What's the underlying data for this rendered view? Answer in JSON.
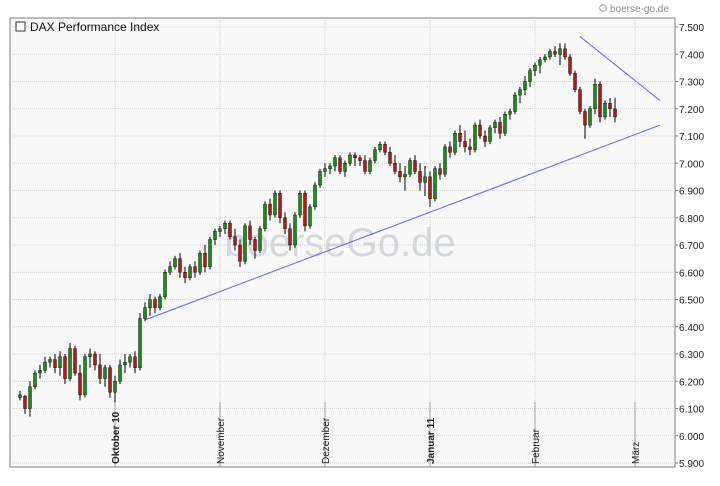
{
  "source_label": "boerse-go.de",
  "watermark": "boerseGo.de",
  "colors": {
    "up": "#1a8a1a",
    "down": "#b11a1a",
    "wick": "#000000",
    "trend": "#6f6ff0",
    "grid": "#c9c9c9"
  },
  "chart_data": {
    "type": "candlestick",
    "title": "DAX Performance Index",
    "ylim": [
      5900,
      7550
    ],
    "yticks": [
      "7.500",
      "7.400",
      "7.300",
      "7.200",
      "7.100",
      "7.000",
      "6.900",
      "6.800",
      "6.700",
      "6.600",
      "6.500",
      "6.400",
      "6.300",
      "6.200",
      "6.100",
      "6.000",
      "5.900"
    ],
    "ytick_values": [
      7500,
      7400,
      7300,
      7200,
      7100,
      7000,
      6900,
      6800,
      6700,
      6600,
      6500,
      6400,
      6300,
      6200,
      6100,
      6000,
      5900
    ],
    "month_labels": [
      {
        "label": "Oktober 10",
        "index": 19,
        "bold": true
      },
      {
        "label": "November",
        "index": 40,
        "bold": false
      },
      {
        "label": "Dezember",
        "index": 61,
        "bold": false
      },
      {
        "label": "Januar 11",
        "index": 82,
        "bold": true
      },
      {
        "label": "Februar",
        "index": 103,
        "bold": false
      },
      {
        "label": "März",
        "index": 123,
        "bold": false
      }
    ],
    "candles": [
      [
        6140,
        6165,
        6130,
        6150
      ],
      [
        6145,
        6150,
        6080,
        6100
      ],
      [
        6100,
        6200,
        6070,
        6180
      ],
      [
        6180,
        6240,
        6170,
        6230
      ],
      [
        6230,
        6260,
        6210,
        6240
      ],
      [
        6240,
        6290,
        6230,
        6270
      ],
      [
        6270,
        6290,
        6250,
        6280
      ],
      [
        6280,
        6300,
        6230,
        6250
      ],
      [
        6250,
        6310,
        6220,
        6290
      ],
      [
        6290,
        6300,
        6190,
        6210
      ],
      [
        6210,
        6340,
        6200,
        6320
      ],
      [
        6320,
        6330,
        6220,
        6230
      ],
      [
        6230,
        6260,
        6130,
        6150
      ],
      [
        6150,
        6300,
        6140,
        6290
      ],
      [
        6290,
        6320,
        6250,
        6300
      ],
      [
        6300,
        6310,
        6240,
        6260
      ],
      [
        6260,
        6300,
        6190,
        6210
      ],
      [
        6210,
        6260,
        6180,
        6250
      ],
      [
        6250,
        6260,
        6140,
        6160
      ],
      [
        6160,
        6220,
        6120,
        6200
      ],
      [
        6200,
        6280,
        6190,
        6260
      ],
      [
        6260,
        6300,
        6230,
        6270
      ],
      [
        6270,
        6300,
        6250,
        6290
      ],
      [
        6290,
        6310,
        6230,
        6250
      ],
      [
        6250,
        6450,
        6240,
        6430
      ],
      [
        6430,
        6490,
        6420,
        6470
      ],
      [
        6470,
        6520,
        6440,
        6500
      ],
      [
        6500,
        6510,
        6450,
        6470
      ],
      [
        6470,
        6520,
        6460,
        6510
      ],
      [
        6510,
        6610,
        6500,
        6600
      ],
      [
        6600,
        6640,
        6590,
        6620
      ],
      [
        6620,
        6660,
        6610,
        6650
      ],
      [
        6650,
        6670,
        6580,
        6600
      ],
      [
        6600,
        6620,
        6560,
        6580
      ],
      [
        6580,
        6630,
        6570,
        6620
      ],
      [
        6620,
        6640,
        6580,
        6600
      ],
      [
        6600,
        6680,
        6590,
        6670
      ],
      [
        6670,
        6700,
        6600,
        6620
      ],
      [
        6620,
        6730,
        6610,
        6720
      ],
      [
        6720,
        6760,
        6700,
        6750
      ],
      [
        6750,
        6770,
        6730,
        6760
      ],
      [
        6760,
        6790,
        6740,
        6780
      ],
      [
        6780,
        6790,
        6720,
        6730
      ],
      [
        6730,
        6760,
        6680,
        6700
      ],
      [
        6700,
        6720,
        6620,
        6640
      ],
      [
        6640,
        6780,
        6630,
        6770
      ],
      [
        6770,
        6790,
        6700,
        6720
      ],
      [
        6720,
        6730,
        6650,
        6680
      ],
      [
        6680,
        6770,
        6670,
        6760
      ],
      [
        6760,
        6860,
        6750,
        6850
      ],
      [
        6850,
        6870,
        6790,
        6810
      ],
      [
        6810,
        6900,
        6800,
        6890
      ],
      [
        6890,
        6900,
        6780,
        6800
      ],
      [
        6800,
        6820,
        6740,
        6760
      ],
      [
        6760,
        6780,
        6680,
        6700
      ],
      [
        6700,
        6820,
        6690,
        6810
      ],
      [
        6810,
        6900,
        6800,
        6890
      ],
      [
        6890,
        6900,
        6750,
        6770
      ],
      [
        6770,
        6850,
        6760,
        6840
      ],
      [
        6840,
        6930,
        6830,
        6920
      ],
      [
        6920,
        6980,
        6910,
        6970
      ],
      [
        6970,
        7000,
        6950,
        6980
      ],
      [
        6980,
        7000,
        6960,
        6990
      ],
      [
        6990,
        7030,
        6970,
        7020
      ],
      [
        7020,
        7030,
        6960,
        6970
      ],
      [
        6970,
        7010,
        6950,
        7000
      ],
      [
        7000,
        7040,
        6990,
        7030
      ],
      [
        7030,
        7040,
        6990,
        7020
      ],
      [
        7020,
        7030,
        6990,
        7010
      ],
      [
        7010,
        7030,
        6960,
        6970
      ],
      [
        6970,
        7020,
        6960,
        7010
      ],
      [
        7010,
        7060,
        7000,
        7050
      ],
      [
        7050,
        7080,
        7040,
        7070
      ],
      [
        7070,
        7080,
        7030,
        7040
      ],
      [
        7040,
        7060,
        6990,
        7000
      ],
      [
        7000,
        7030,
        6960,
        6970
      ],
      [
        6970,
        7000,
        6930,
        6950
      ],
      [
        6950,
        6990,
        6900,
        6960
      ],
      [
        6960,
        7020,
        6950,
        7010
      ],
      [
        7010,
        7030,
        6960,
        6970
      ],
      [
        6970,
        7000,
        6900,
        6930
      ],
      [
        6930,
        6990,
        6880,
        6950
      ],
      [
        6950,
        6970,
        6840,
        6870
      ],
      [
        6870,
        6990,
        6860,
        6980
      ],
      [
        6980,
        7000,
        6940,
        6960
      ],
      [
        6960,
        7070,
        6950,
        7060
      ],
      [
        7060,
        7080,
        7020,
        7040
      ],
      [
        7040,
        7120,
        7030,
        7110
      ],
      [
        7110,
        7140,
        7060,
        7080
      ],
      [
        7080,
        7120,
        7040,
        7060
      ],
      [
        7060,
        7090,
        7030,
        7050
      ],
      [
        7050,
        7150,
        7040,
        7140
      ],
      [
        7140,
        7160,
        7090,
        7100
      ],
      [
        7100,
        7120,
        7060,
        7080
      ],
      [
        7080,
        7140,
        7070,
        7130
      ],
      [
        7130,
        7160,
        7110,
        7150
      ],
      [
        7150,
        7170,
        7090,
        7110
      ],
      [
        7110,
        7190,
        7100,
        7180
      ],
      [
        7180,
        7200,
        7160,
        7190
      ],
      [
        7190,
        7260,
        7180,
        7250
      ],
      [
        7250,
        7280,
        7220,
        7270
      ],
      [
        7270,
        7320,
        7250,
        7300
      ],
      [
        7300,
        7350,
        7280,
        7340
      ],
      [
        7340,
        7370,
        7320,
        7360
      ],
      [
        7360,
        7390,
        7330,
        7380
      ],
      [
        7380,
        7400,
        7370,
        7390
      ],
      [
        7390,
        7420,
        7380,
        7410
      ],
      [
        7410,
        7430,
        7390,
        7400
      ],
      [
        7400,
        7440,
        7360,
        7420
      ],
      [
        7420,
        7440,
        7380,
        7390
      ],
      [
        7390,
        7400,
        7320,
        7330
      ],
      [
        7330,
        7340,
        7260,
        7270
      ],
      [
        7270,
        7280,
        7180,
        7190
      ],
      [
        7190,
        7200,
        7090,
        7140
      ],
      [
        7140,
        7210,
        7130,
        7200
      ],
      [
        7200,
        7310,
        7180,
        7290
      ],
      [
        7290,
        7300,
        7150,
        7170
      ],
      [
        7170,
        7230,
        7160,
        7220
      ],
      [
        7220,
        7240,
        7170,
        7200
      ],
      [
        7200,
        7240,
        7150,
        7170
      ]
    ],
    "trendlines": [
      {
        "from": [
          25,
          6425
        ],
        "to": [
          128,
          7140
        ]
      },
      {
        "from": [
          112,
          7465
        ],
        "to": [
          128,
          7230
        ]
      }
    ],
    "grid": true
  }
}
